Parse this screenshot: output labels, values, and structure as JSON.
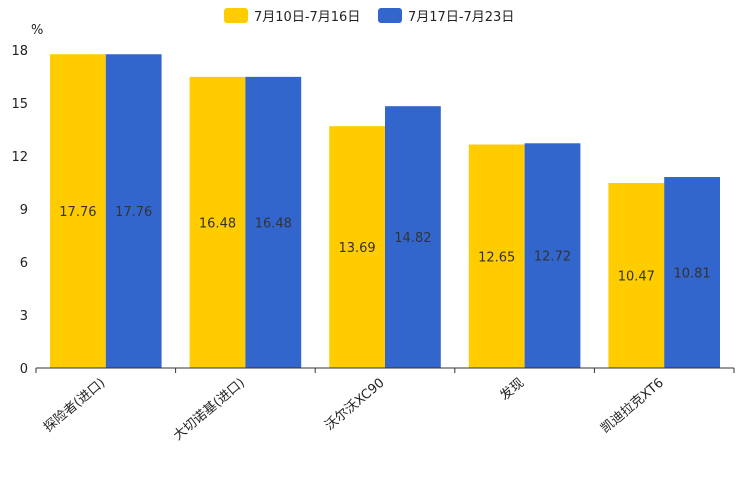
{
  "chart_data": {
    "type": "bar",
    "title": "",
    "xlabel": "",
    "ylabel": "%",
    "ylim": [
      0,
      18
    ],
    "yticks": [
      "0",
      "3",
      "6",
      "9",
      "12",
      "15",
      "18"
    ],
    "grid": false,
    "legend_position": "top-center",
    "categories": [
      "探险者(进口)",
      "大切诺基(进口)",
      "沃尔沃XC90",
      "发现",
      "凯迪拉克XT6"
    ],
    "series": [
      {
        "name": "7月10日-7月16日",
        "color": "#FFCC00",
        "values": [
          17.76,
          16.48,
          13.69,
          12.65,
          10.47
        ],
        "labels": [
          "17.76",
          "16.48",
          "13.69",
          "12.65",
          "10.47"
        ]
      },
      {
        "name": "7月17日-7月23日",
        "color": "#3366CC",
        "values": [
          17.76,
          16.48,
          14.82,
          12.72,
          10.81
        ],
        "labels": [
          "17.76",
          "16.48",
          "14.82",
          "12.72",
          "10.81"
        ]
      }
    ]
  }
}
